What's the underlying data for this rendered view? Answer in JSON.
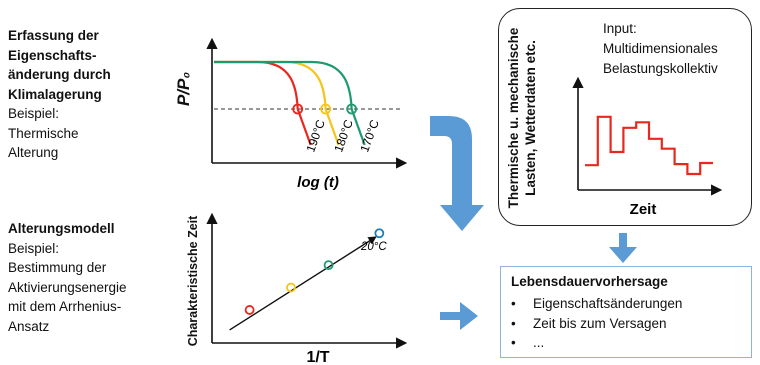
{
  "left_section_1": {
    "heading": [
      "Erfassung der",
      "Eigenschafts-",
      "änderung durch",
      "Klimalagerung"
    ],
    "text": [
      "Beispiel:",
      "Thermische",
      "Alterung"
    ]
  },
  "left_section_2": {
    "heading": [
      "Alterungsmodell"
    ],
    "text": [
      "Beispiel:",
      "Bestimmung der",
      "Aktivierungsenergie",
      "mit dem Arrhenius-",
      "Ansatz"
    ]
  },
  "chart_data": [
    {
      "type": "line",
      "xlabel": "log (t)",
      "ylabel": "P/P₀",
      "series": [
        {
          "name": "190°C",
          "color": "#e8281f",
          "drop_x": 0.45
        },
        {
          "name": "180°C",
          "color": "#f5c518",
          "drop_x": 0.6
        },
        {
          "name": "170°C",
          "color": "#1e9a6e",
          "drop_x": 0.74
        }
      ],
      "threshold_line": "dashed"
    },
    {
      "type": "scatter",
      "xlabel": "1/T",
      "ylabel": "Charakteristische Zeit",
      "annotation": "20°C",
      "points": [
        {
          "x": 0.2,
          "y": 0.28,
          "color": "#e8281f"
        },
        {
          "x": 0.42,
          "y": 0.47,
          "color": "#f5c518"
        },
        {
          "x": 0.62,
          "y": 0.66,
          "color": "#1e9a6e"
        },
        {
          "x": 0.89,
          "y": 0.93,
          "color": "#1f7fb5"
        }
      ]
    },
    {
      "type": "line",
      "xlabel": "Zeit",
      "ylabel": [
        "Thermische u. mechanische",
        "Lasten, Wetterdaten etc."
      ],
      "color": "#e8281f",
      "step_profile": [
        0.18,
        0.62,
        0.3,
        0.52,
        0.57,
        0.42,
        0.33,
        0.19,
        0.1,
        0.2
      ]
    }
  ],
  "input_box": {
    "lines": [
      "Input:",
      "Multidimensionales",
      "Belastungskollektiv"
    ]
  },
  "result_box": {
    "title": "Lebensdauervorhersage",
    "items": [
      "Eigenschaftsänderungen",
      "Zeit bis zum Versagen",
      "..."
    ],
    "bullet": "•"
  },
  "colors": {
    "arrow": "#5b9bd5",
    "box_border": "#8fb3d6",
    "red": "#e8281f",
    "yellow": "#f5c518",
    "green": "#1e9a6e",
    "blue_point": "#1f7fb5"
  }
}
